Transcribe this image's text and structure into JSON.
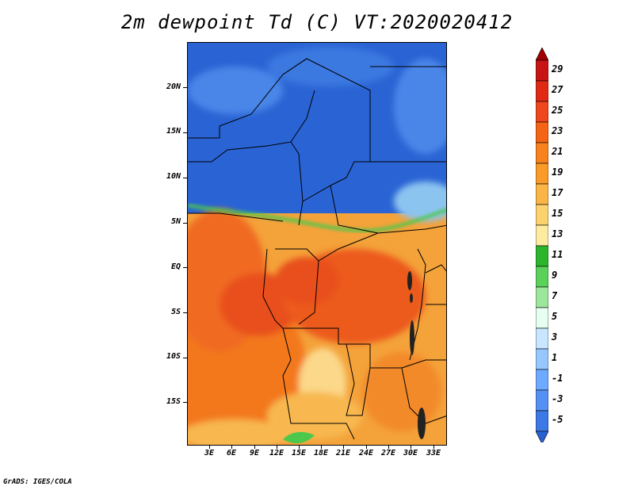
{
  "title": "2m dewpoint Td (C) VT:2020020412",
  "credit": "GrADS: IGES/COLA",
  "y_axis": {
    "labels": [
      "20N",
      "15N",
      "10N",
      "5N",
      "EQ",
      "5S",
      "10S",
      "15S"
    ]
  },
  "x_axis": {
    "labels": [
      "3E",
      "6E",
      "9E",
      "12E",
      "15E",
      "18E",
      "21E",
      "24E",
      "27E",
      "30E",
      "33E"
    ]
  },
  "colorbar": {
    "labels": [
      "29",
      "27",
      "25",
      "23",
      "21",
      "19",
      "17",
      "15",
      "13",
      "11",
      "9",
      "7",
      "5",
      "3",
      "1",
      "-1",
      "-3",
      "-5"
    ],
    "colors_top_to_bottom": [
      "#a00000",
      "#c81414",
      "#e02a14",
      "#f0461e",
      "#f56414",
      "#f8821e",
      "#fa9a28",
      "#fbb446",
      "#fcd26e",
      "#fdeca0",
      "#2db42d",
      "#5ad25a",
      "#9ce69c",
      "#e6fff0",
      "#c8e6ff",
      "#96c8ff",
      "#6eaaff",
      "#5591f5",
      "#3c78e6",
      "#2862d2"
    ]
  },
  "color_legend": {
    "cold": "#2a64d4",
    "warm": "#f07030",
    "hot": "#e8481e",
    "mild": "#f5b450",
    "green": "#4cc84c"
  }
}
